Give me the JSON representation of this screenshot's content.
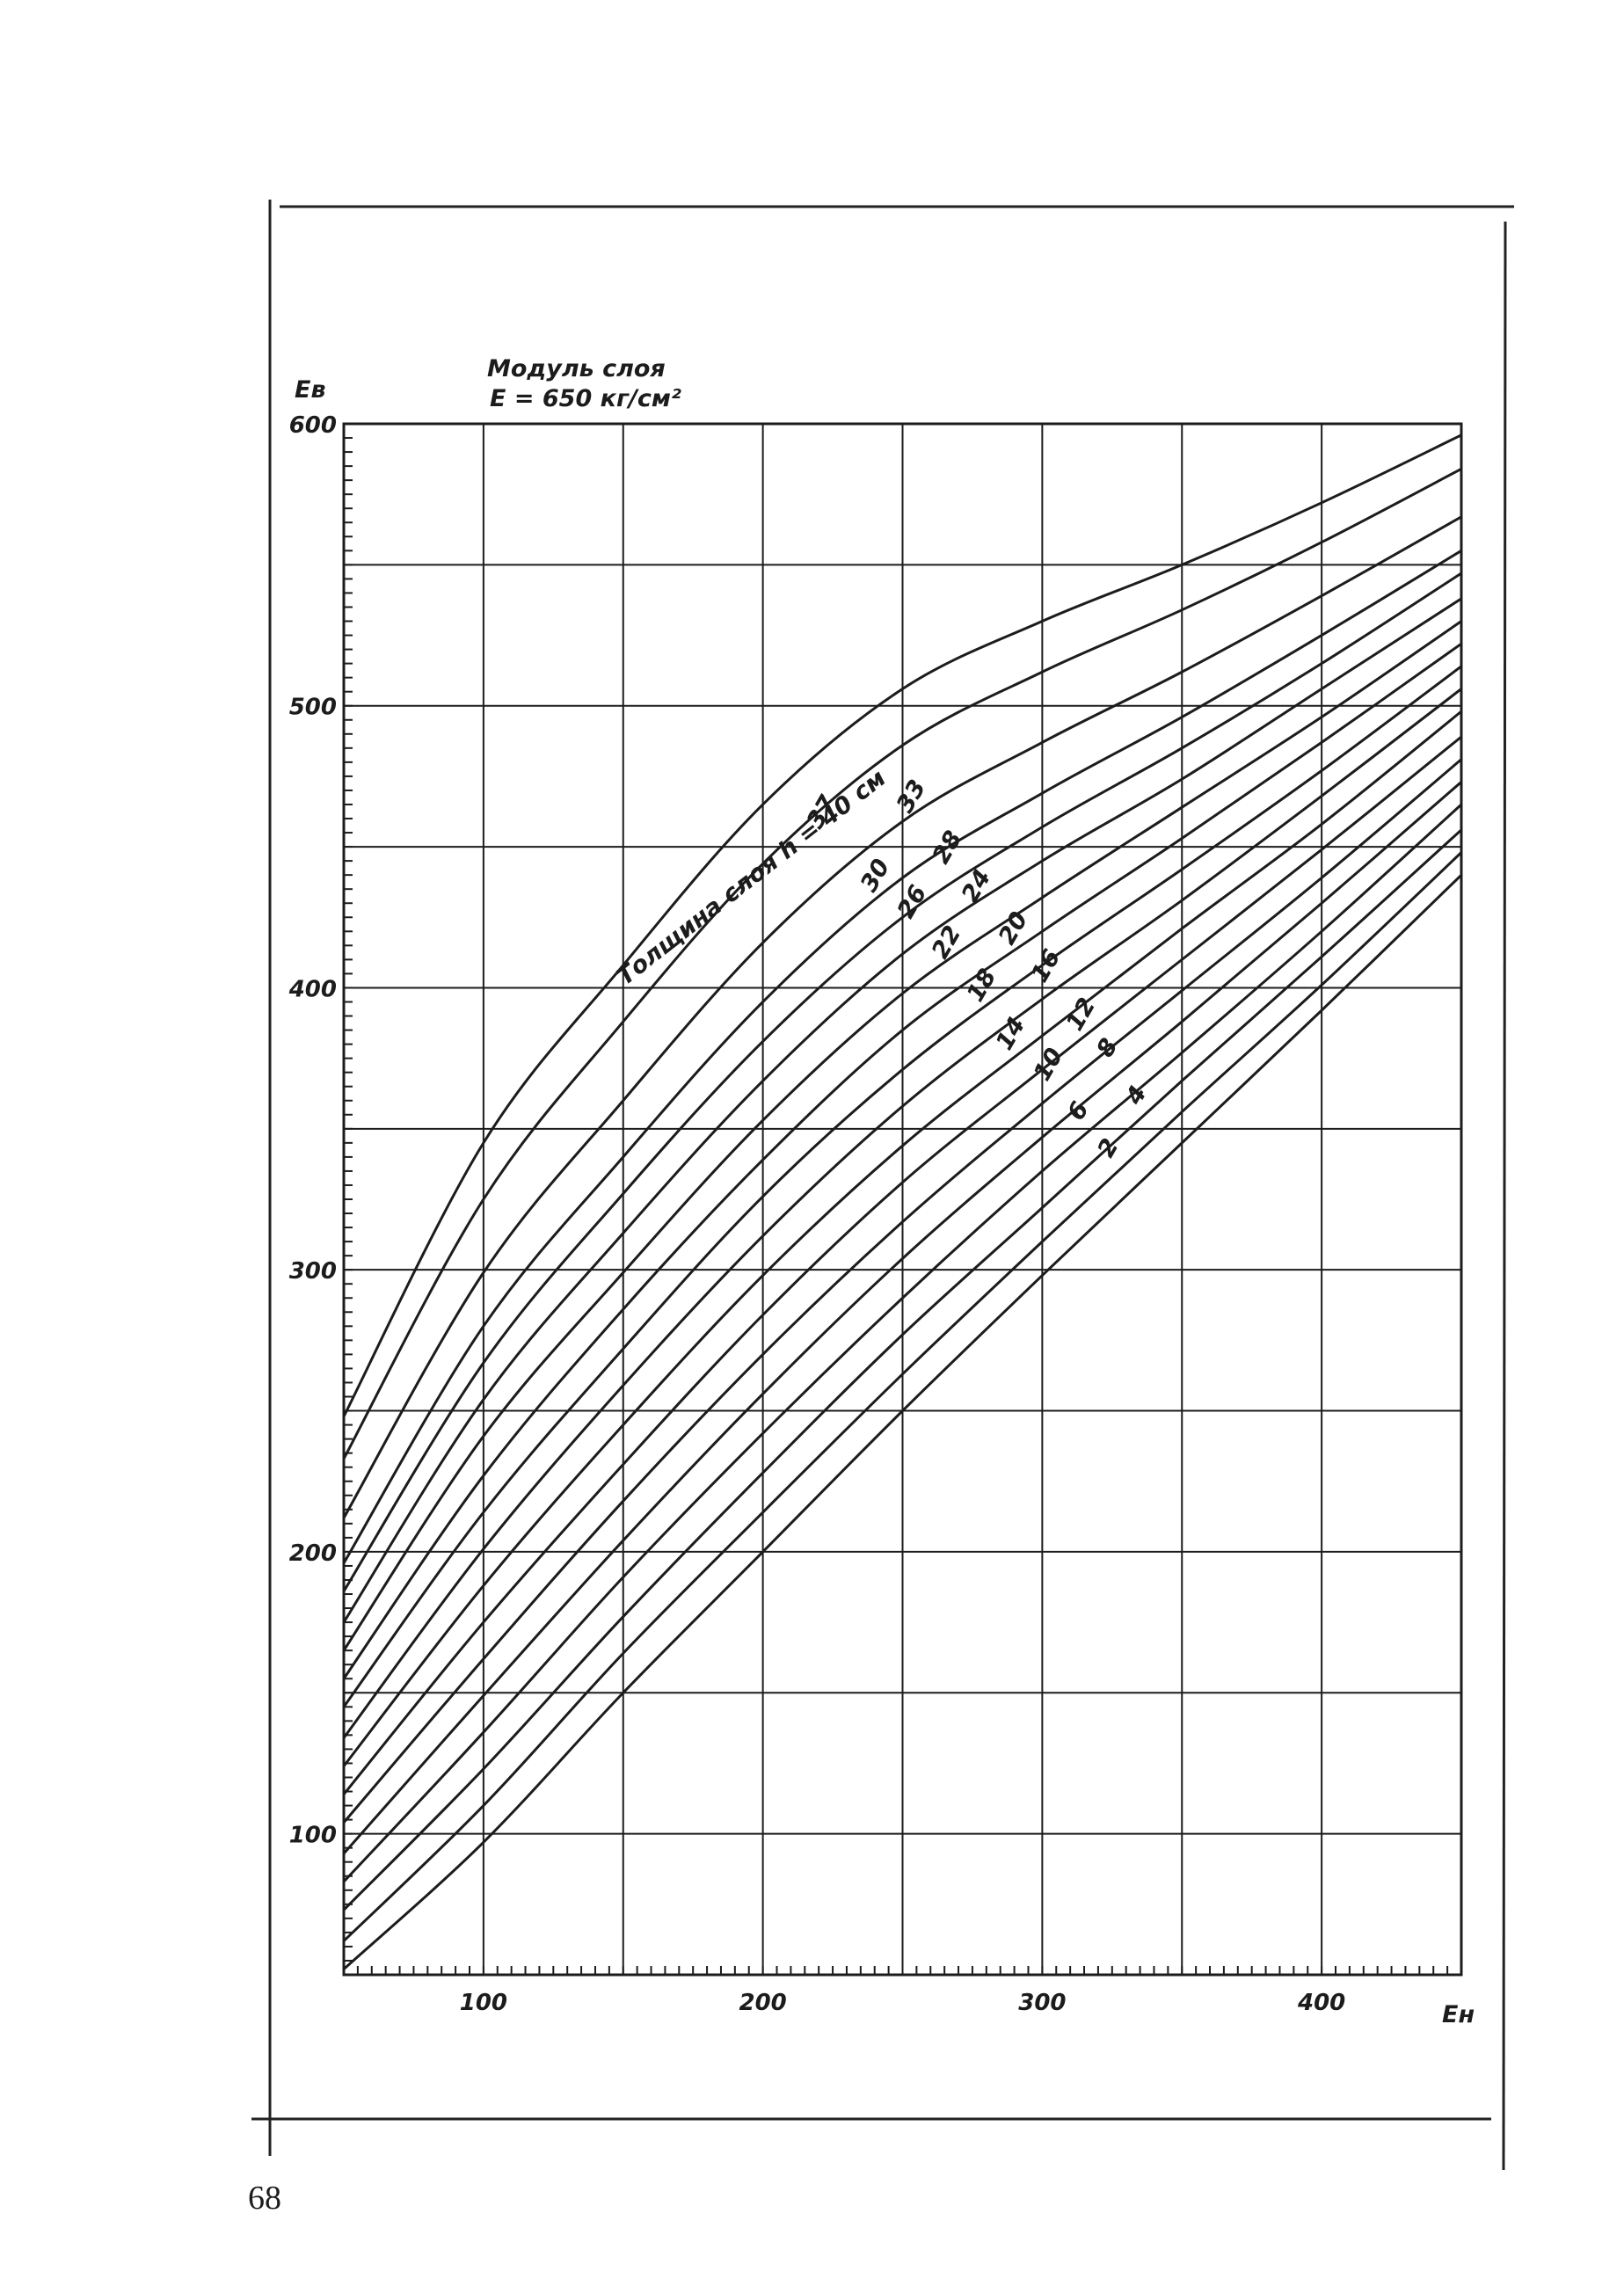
{
  "page_number": "68",
  "chart_data": {
    "type": "line",
    "title": "Модуль слоя",
    "subtitle": "E = 650 кг/см²",
    "ylabel": "Eв",
    "xlabel": "Eн",
    "color": "#1c1c1c",
    "grid": true,
    "xlim": [
      50,
      450
    ],
    "ylim": [
      50,
      600
    ],
    "xticks": [
      100,
      200,
      300,
      400
    ],
    "yticks": [
      100,
      200,
      300,
      400,
      500,
      600
    ],
    "x": [
      50,
      100,
      150,
      200,
      250,
      300,
      350,
      400,
      450
    ],
    "series": [
      {
        "name": "2",
        "values": [
          52,
          97,
          150,
          200,
          250,
          298,
          345,
          392,
          440
        ]
      },
      {
        "name": "4",
        "values": [
          62,
          110,
          164,
          214,
          263,
          310,
          356,
          401,
          448
        ]
      },
      {
        "name": "6",
        "values": [
          73,
          123,
          177,
          228,
          277,
          322,
          367,
          411,
          456
        ]
      },
      {
        "name": "8",
        "values": [
          83,
          136,
          191,
          242,
          290,
          335,
          377,
          420,
          465
        ]
      },
      {
        "name": "10",
        "values": [
          93,
          149,
          204,
          256,
          304,
          347,
          388,
          430,
          473
        ]
      },
      {
        "name": "12",
        "values": [
          104,
          162,
          218,
          270,
          317,
          359,
          399,
          439,
          481
        ]
      },
      {
        "name": "14",
        "values": [
          114,
          175,
          231,
          284,
          331,
          371,
          410,
          449,
          489
        ]
      },
      {
        "name": "16",
        "values": [
          124,
          188,
          245,
          298,
          344,
          383,
          421,
          458,
          498
        ]
      },
      {
        "name": "18",
        "values": [
          134,
          201,
          259,
          312,
          358,
          396,
          431,
          468,
          506
        ]
      },
      {
        "name": "20",
        "values": [
          145,
          214,
          272,
          326,
          371,
          408,
          442,
          477,
          514
        ]
      },
      {
        "name": "22",
        "values": [
          155,
          227,
          286,
          339,
          385,
          420,
          453,
          487,
          522
        ]
      },
      {
        "name": "24",
        "values": [
          165,
          241,
          299,
          353,
          398,
          432,
          464,
          496,
          530
        ]
      },
      {
        "name": "26",
        "values": [
          175,
          254,
          313,
          367,
          412,
          445,
          474,
          506,
          538
        ]
      },
      {
        "name": "28",
        "values": [
          186,
          267,
          327,
          381,
          425,
          457,
          485,
          515,
          547
        ]
      },
      {
        "name": "30",
        "values": [
          196,
          280,
          340,
          395,
          439,
          469,
          496,
          525,
          555
        ]
      },
      {
        "name": "33",
        "values": [
          212,
          299,
          360,
          416,
          459,
          487,
          512,
          539,
          567
        ]
      },
      {
        "name": "37",
        "values": [
          233,
          325,
          388,
          444,
          486,
          512,
          534,
          558,
          584
        ]
      },
      {
        "name": "Толщина слоя h = 40 см",
        "values": [
          248,
          345,
          408,
          465,
          506,
          530,
          550,
          572,
          596
        ]
      }
    ]
  }
}
